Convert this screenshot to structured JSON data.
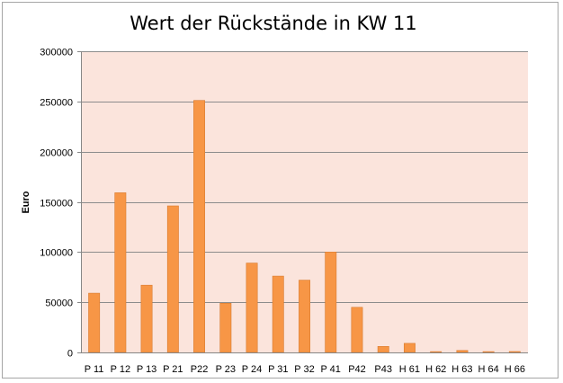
{
  "chart_data": {
    "type": "bar",
    "title": "Wert der Rückstände in KW 11",
    "xlabel": "",
    "ylabel": "Euro",
    "ylim": [
      0,
      300000
    ],
    "yticks": [
      0,
      50000,
      100000,
      150000,
      200000,
      250000,
      300000
    ],
    "categories": [
      "P 11",
      "P 12",
      "P 13",
      "P 21",
      "P22",
      "P 23",
      "P 24",
      "P 31",
      "P 32",
      "P 41",
      "P42",
      "P43",
      "H 61",
      "H 62",
      "H 63",
      "H 64",
      "H 66"
    ],
    "values": [
      59000,
      159000,
      67000,
      146000,
      251000,
      49000,
      89000,
      76000,
      72000,
      100000,
      45000,
      6000,
      9000,
      800,
      2000,
      800,
      900
    ],
    "grid": true,
    "legend": "none",
    "colors": {
      "bar": "#f79646",
      "bar_edge": "#d97b2e",
      "plot_background": "#fbe4dc",
      "gridline": "#8c8c8c",
      "axis": "#868686",
      "frame": "#a6a6a6"
    }
  }
}
